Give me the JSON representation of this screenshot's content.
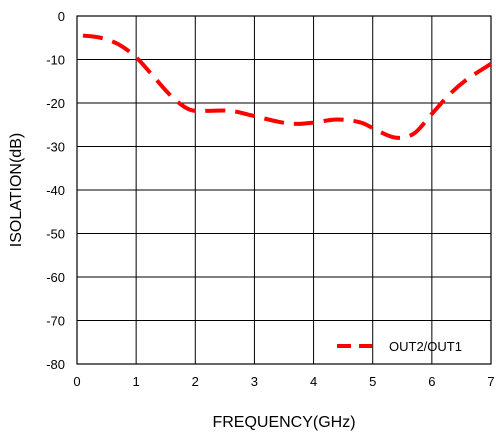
{
  "chart_data": {
    "type": "line",
    "xlabel": "FREQUENCY(GHz)",
    "ylabel": "ISOLATION(dB)",
    "xlim": [
      0,
      7
    ],
    "ylim": [
      -80,
      0
    ],
    "xticks": [
      "0",
      "1",
      "2",
      "3",
      "4",
      "5",
      "6",
      "7"
    ],
    "yticks": [
      "0",
      "-10",
      "-20",
      "-30",
      "-40",
      "-50",
      "-60",
      "-70",
      "-80"
    ],
    "grid": true,
    "legend_position": "bottom-right",
    "series": [
      {
        "name": "OUT2/OUT1",
        "color": "#ff0000",
        "style": "dashed",
        "x": [
          0.1,
          0.4,
          0.7,
          1.0,
          1.3,
          1.6,
          1.9,
          2.2,
          2.6,
          3.0,
          3.4,
          3.7,
          4.0,
          4.4,
          4.8,
          5.1,
          5.4,
          5.7,
          6.0,
          6.3,
          6.6,
          7.0
        ],
        "y": [
          -4.5,
          -5.0,
          -6.5,
          -9.5,
          -14.0,
          -18.5,
          -21.5,
          -21.8,
          -21.8,
          -23.0,
          -24.3,
          -24.8,
          -24.5,
          -23.8,
          -24.5,
          -26.5,
          -28.0,
          -27.0,
          -22.5,
          -18.0,
          -14.5,
          -11.0
        ]
      }
    ]
  }
}
